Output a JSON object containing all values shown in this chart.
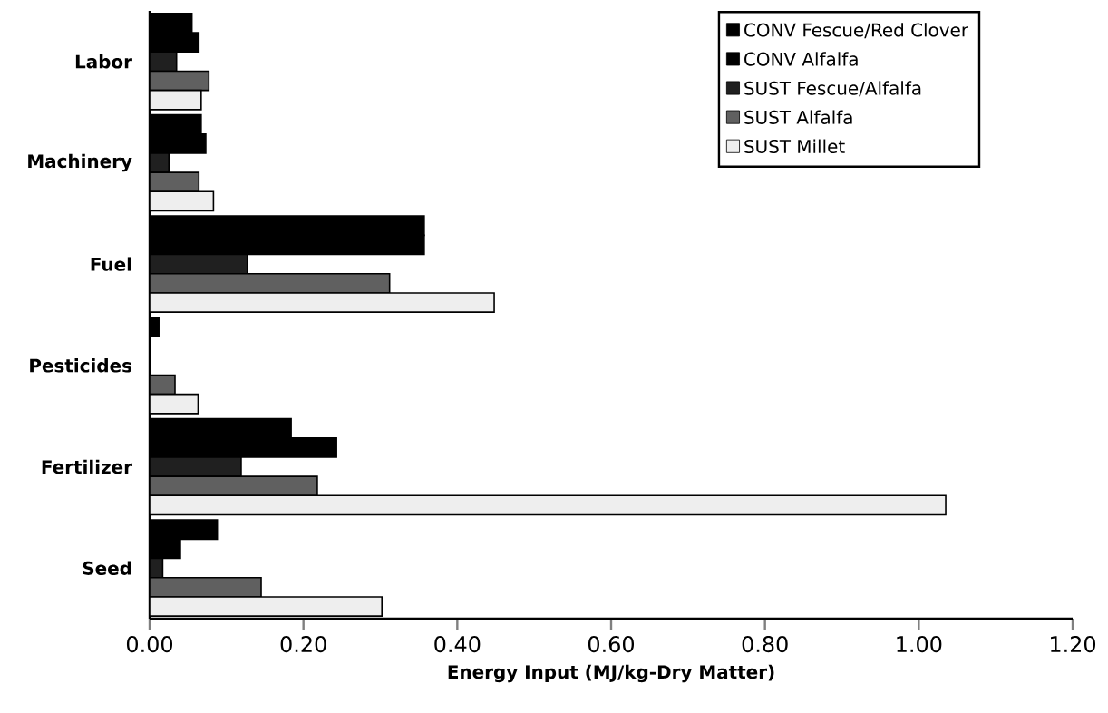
{
  "chart_data": {
    "type": "bar",
    "orientation": "horizontal",
    "xlabel": "Energy Input (MJ/kg-Dry Matter)",
    "categories": [
      "Labor",
      "Machinery",
      "Fuel",
      "Pesticides",
      "Fertilizer",
      "Seed"
    ],
    "series": [
      {
        "name": "CONV Fescue/Red Clover",
        "color": "#000000",
        "values": [
          0.055,
          0.067,
          0.357,
          0.012,
          0.184,
          0.088
        ]
      },
      {
        "name": "CONV Alfalfa",
        "color": "#000000",
        "values": [
          0.064,
          0.073,
          0.357,
          null,
          0.243,
          0.04
        ]
      },
      {
        "name": "SUST Fescue/Alfalfa",
        "color": "#202020",
        "values": [
          0.035,
          0.025,
          0.127,
          null,
          0.119,
          0.017
        ]
      },
      {
        "name": "SUST Alfalfa",
        "color": "#606060",
        "values": [
          0.077,
          0.064,
          0.312,
          0.033,
          0.218,
          0.145
        ]
      },
      {
        "name": "SUST Millet",
        "color": "#eeeeee",
        "values": [
          0.067,
          0.083,
          0.448,
          0.063,
          1.035,
          0.302
        ]
      }
    ],
    "xlim": [
      0,
      1.2
    ],
    "xticks": [
      {
        "value": 0,
        "label": "0.00"
      },
      {
        "value": 0.2,
        "label": "0.20"
      },
      {
        "value": 0.4,
        "label": "0.40"
      },
      {
        "value": 0.6,
        "label": "0.60"
      },
      {
        "value": 0.8,
        "label": "0.80"
      },
      {
        "value": 1.0,
        "label": "1.00"
      },
      {
        "value": 1.2,
        "label": "1.20"
      }
    ],
    "legend": "top right",
    "grid": false
  }
}
